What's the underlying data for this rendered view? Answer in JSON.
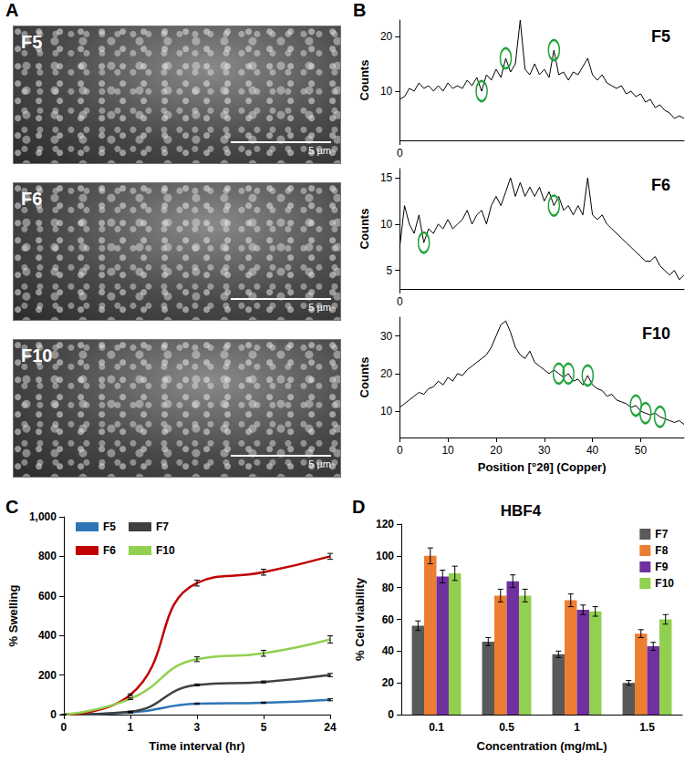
{
  "images": {
    "panel": "A",
    "items": [
      {
        "label": "F5",
        "scale_bar": "5 µm"
      },
      {
        "label": "F6",
        "scale_bar": "5 µm"
      },
      {
        "label": "F10",
        "scale_bar": "5 µm"
      }
    ]
  },
  "chart_data": [
    {
      "type": "line",
      "panel": "B",
      "title": "F5",
      "y_label": "Counts",
      "color": "#000000",
      "x": [
        0,
        1,
        2,
        3,
        4,
        5,
        6,
        7,
        8,
        9,
        10,
        11,
        12,
        13,
        14,
        15,
        16,
        17,
        18,
        19,
        20,
        21,
        22,
        23,
        24,
        25,
        26,
        27,
        28,
        29,
        30,
        31,
        32,
        33,
        34,
        35,
        36,
        37,
        38,
        39,
        40,
        41,
        42,
        43,
        44,
        45,
        46,
        47,
        48,
        49,
        50,
        51,
        52,
        53,
        54,
        55,
        56,
        57,
        58,
        59
      ],
      "values": [
        8.5,
        9,
        10.5,
        10,
        11.5,
        10.5,
        11,
        10,
        11,
        10,
        11.5,
        10.5,
        11,
        10.5,
        12,
        11,
        12.5,
        10,
        13,
        12,
        14,
        12.5,
        16,
        13.5,
        15,
        23,
        14,
        13,
        15,
        13,
        14,
        12.5,
        17.5,
        13,
        13.5,
        12,
        13.5,
        13,
        14.5,
        16,
        13,
        12,
        13,
        11.5,
        11,
        10.5,
        11,
        9.5,
        10,
        9,
        9.5,
        8,
        8.5,
        7,
        7.5,
        6.5,
        6,
        5,
        5.5,
        5
      ],
      "highlights": [
        [
          17,
          10
        ],
        [
          22,
          16
        ],
        [
          32,
          17.5
        ]
      ],
      "xlim": [
        0,
        59
      ],
      "xticks": [
        0
      ],
      "ylim": [
        1,
        23
      ],
      "yticks": [
        10,
        20
      ],
      "grid": false
    },
    {
      "type": "line",
      "title": "F6",
      "y_label": "Counts",
      "color": "#000000",
      "x": [
        0,
        1,
        2,
        3,
        4,
        5,
        6,
        7,
        8,
        9,
        10,
        11,
        12,
        13,
        14,
        15,
        16,
        17,
        18,
        19,
        20,
        21,
        22,
        23,
        24,
        25,
        26,
        27,
        28,
        29,
        30,
        31,
        32,
        33,
        34,
        35,
        36,
        37,
        38,
        39,
        40,
        41,
        42,
        43,
        44,
        45,
        46,
        47,
        48,
        49,
        50,
        51,
        52,
        53,
        54,
        55,
        56,
        57,
        58,
        59
      ],
      "values": [
        7.5,
        12,
        10,
        9,
        11,
        8,
        9.5,
        9,
        10,
        9.5,
        10.5,
        9.5,
        10,
        10.5,
        11.5,
        10,
        11,
        11.5,
        10,
        12,
        13,
        12,
        13.5,
        15,
        13,
        14.5,
        13,
        14,
        13,
        14,
        12.5,
        13.5,
        12,
        13,
        11.5,
        12,
        11,
        12,
        11,
        15,
        11,
        10.5,
        11,
        10,
        9.5,
        9,
        8.5,
        8,
        7.5,
        7,
        6.5,
        6,
        6,
        6.5,
        5.5,
        5,
        4.5,
        5,
        4,
        4.5
      ],
      "highlights": [
        [
          5,
          8
        ],
        [
          32,
          12
        ]
      ],
      "xlim": [
        0,
        59
      ],
      "xticks": [
        0
      ],
      "ylim": [
        3,
        16
      ],
      "yticks": [
        5,
        10,
        15
      ],
      "grid": false
    },
    {
      "type": "line",
      "title": "F10",
      "x_label": "Position [°2θ] (Copper)",
      "y_label": "Counts",
      "color": "#000000",
      "x": [
        0,
        1,
        2,
        3,
        4,
        5,
        6,
        7,
        8,
        9,
        10,
        11,
        12,
        13,
        14,
        15,
        16,
        17,
        18,
        19,
        20,
        21,
        22,
        23,
        24,
        25,
        26,
        27,
        28,
        29,
        30,
        31,
        32,
        33,
        34,
        35,
        36,
        37,
        38,
        39,
        40,
        41,
        42,
        43,
        44,
        45,
        46,
        47,
        48,
        49,
        50,
        51,
        52,
        53,
        54,
        55,
        56,
        57,
        58,
        59
      ],
      "values": [
        11,
        12,
        13,
        14,
        15,
        14.5,
        16,
        16.5,
        18,
        17,
        19,
        18,
        20,
        19.5,
        21,
        22,
        23,
        24,
        25,
        27,
        30,
        33,
        34,
        31,
        27,
        25,
        24,
        26,
        23,
        22,
        21,
        20,
        21,
        20,
        19,
        20,
        18,
        18.5,
        17,
        19.5,
        17,
        16,
        15.5,
        14,
        14.5,
        13,
        12.5,
        12,
        11,
        11.5,
        10,
        9.5,
        9,
        9.5,
        8.5,
        8,
        7.5,
        7,
        7.5,
        6.5
      ],
      "highlights": [
        [
          33,
          20
        ],
        [
          35,
          20
        ],
        [
          39,
          19.5
        ],
        [
          49,
          11.5
        ],
        [
          51,
          9.5
        ],
        [
          54,
          8.5
        ]
      ],
      "xlim": [
        0,
        59
      ],
      "xticks": [
        0,
        10,
        20,
        30,
        40,
        50
      ],
      "ylim": [
        3,
        35
      ],
      "yticks": [
        10,
        20,
        30
      ],
      "grid": false
    },
    {
      "type": "line",
      "panel": "C",
      "x_label": "Time interval (hr)",
      "y_label": "% Swelling",
      "categories": [
        "0",
        "1",
        "3",
        "5",
        "24"
      ],
      "series": [
        {
          "name": "F5",
          "color": "#2e75b6",
          "values": [
            0,
            10,
            55,
            60,
            75
          ],
          "errors": [
            0,
            2,
            3,
            3,
            5
          ]
        },
        {
          "name": "F7",
          "color": "#404040",
          "values": [
            0,
            15,
            150,
            165,
            200
          ],
          "errors": [
            0,
            2,
            5,
            5,
            8
          ]
        },
        {
          "name": "F6",
          "color": "#c00000",
          "values": [
            0,
            100,
            665,
            720,
            800
          ],
          "errors": [
            0,
            5,
            15,
            15,
            15
          ]
        },
        {
          "name": "F10",
          "color": "#92d050",
          "values": [
            0,
            80,
            280,
            310,
            380
          ],
          "errors": [
            0,
            4,
            12,
            15,
            18
          ]
        }
      ],
      "ylim": [
        0,
        1000
      ],
      "yticks": [
        0,
        200,
        400,
        600,
        800,
        1000
      ],
      "legend": "top-left",
      "grid": false
    },
    {
      "type": "bar",
      "panel": "D",
      "title": "HBF4",
      "x_label": "Concentration (mg/mL)",
      "y_label": "% Cell viability",
      "categories": [
        "0.1",
        "0.5",
        "1",
        "1.5"
      ],
      "series": [
        {
          "name": "F7",
          "color": "#595959",
          "values": [
            56,
            46,
            38,
            20
          ],
          "errors": [
            3,
            2.5,
            2,
            1.5
          ]
        },
        {
          "name": "F8",
          "color": "#ed7d31",
          "values": [
            100,
            75,
            72,
            51
          ],
          "errors": [
            5,
            4,
            4,
            2.5
          ]
        },
        {
          "name": "F9",
          "color": "#7030a0",
          "values": [
            87,
            84,
            66,
            43
          ],
          "errors": [
            4,
            4,
            3,
            2.5
          ]
        },
        {
          "name": "F10",
          "color": "#92d050",
          "values": [
            89,
            75,
            65,
            60
          ],
          "errors": [
            4.5,
            4,
            3,
            3
          ]
        }
      ],
      "ylim": [
        0,
        120
      ],
      "yticks": [
        0,
        20,
        40,
        60,
        80,
        100,
        120
      ],
      "legend": "top-right",
      "grid": false
    }
  ]
}
